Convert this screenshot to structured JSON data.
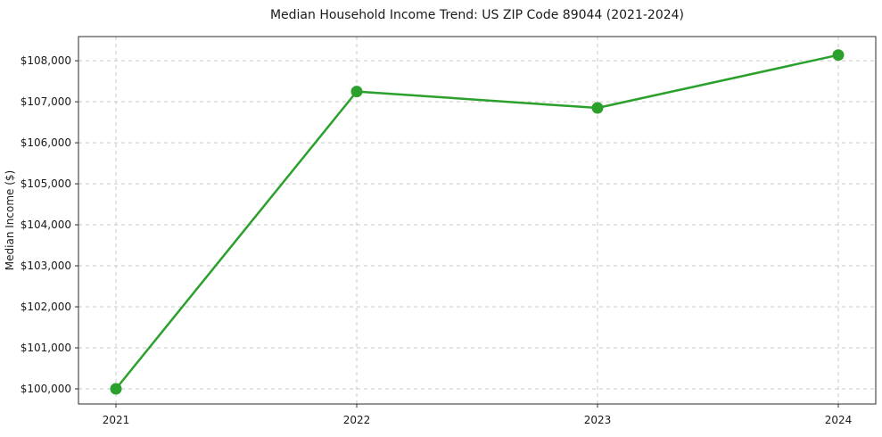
{
  "chart_data": {
    "type": "line",
    "title": "Median Household Income Trend: US ZIP Code 89044 (2021-2024)",
    "xlabel": "",
    "ylabel": "Median Income ($)",
    "categories": [
      "2021",
      "2022",
      "2023",
      "2024"
    ],
    "series": [
      {
        "name": "Median Household Income",
        "values": [
          100000,
          107250,
          106850,
          108140
        ],
        "color": "#2ca02c",
        "marker": "circle",
        "line_width": 2.5,
        "marker_radius": 6.5
      }
    ],
    "yticks": [
      {
        "value": 100000,
        "label": "$100,000"
      },
      {
        "value": 101000,
        "label": "$101,000"
      },
      {
        "value": 102000,
        "label": "$102,000"
      },
      {
        "value": 103000,
        "label": "$103,000"
      },
      {
        "value": 104000,
        "label": "$104,000"
      },
      {
        "value": 105000,
        "label": "$105,000"
      },
      {
        "value": 106000,
        "label": "$106,000"
      },
      {
        "value": 107000,
        "label": "$107,000"
      },
      {
        "value": 108000,
        "label": "$108,000"
      }
    ],
    "ylim": [
      99630,
      108590
    ],
    "grid": true,
    "grid_style": "dashed",
    "legend_position": "none",
    "colors": {
      "grid": "#c9c9c9",
      "axis_frame": "#2b2b2b",
      "tick": "#2b2b2b",
      "text": "#1a1a1a",
      "background": "#ffffff"
    }
  }
}
